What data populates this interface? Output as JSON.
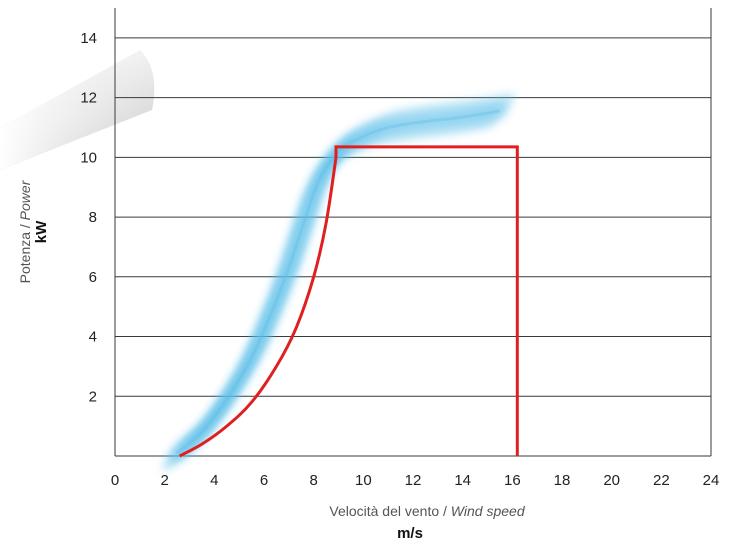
{
  "chart_data": {
    "type": "line",
    "title": "",
    "xlabel": {
      "it": "Velocità del vento",
      "sep": " / ",
      "en": "Wind speed",
      "unit": "m/s"
    },
    "ylabel": {
      "it": "Potenza",
      "sep": " / ",
      "en": "Power",
      "unit": "kW"
    },
    "xlim": [
      0,
      24
    ],
    "ylim": [
      0,
      15
    ],
    "xticks": [
      0,
      2,
      4,
      6,
      8,
      10,
      12,
      14,
      16,
      18,
      20,
      22,
      24
    ],
    "yticks": [
      2,
      4,
      6,
      8,
      10,
      12,
      14
    ],
    "grid": "horizontal",
    "series": [
      {
        "color": "#e02020",
        "x": [
          2.6,
          3.5,
          4.5,
          5.5,
          6.5,
          7.3,
          8.0,
          8.5,
          8.9,
          8.9,
          16.2,
          16.2
        ],
        "y": [
          0,
          0.4,
          1.0,
          1.8,
          3.0,
          4.3,
          6.0,
          7.8,
          10.0,
          10.35,
          10.35,
          0
        ]
      }
    ],
    "scatter_band": {
      "color": "#5bbde8",
      "center": {
        "x": [
          2.5,
          3.5,
          4.5,
          5.5,
          6.3,
          7.0,
          7.6,
          8.2,
          9.0,
          10.0,
          11.0,
          12.5,
          14.0,
          15.5
        ],
        "y": [
          0.1,
          0.8,
          1.9,
          3.3,
          4.8,
          6.3,
          7.8,
          9.2,
          10.2,
          10.7,
          11.0,
          11.2,
          11.35,
          11.55
        ]
      }
    }
  }
}
